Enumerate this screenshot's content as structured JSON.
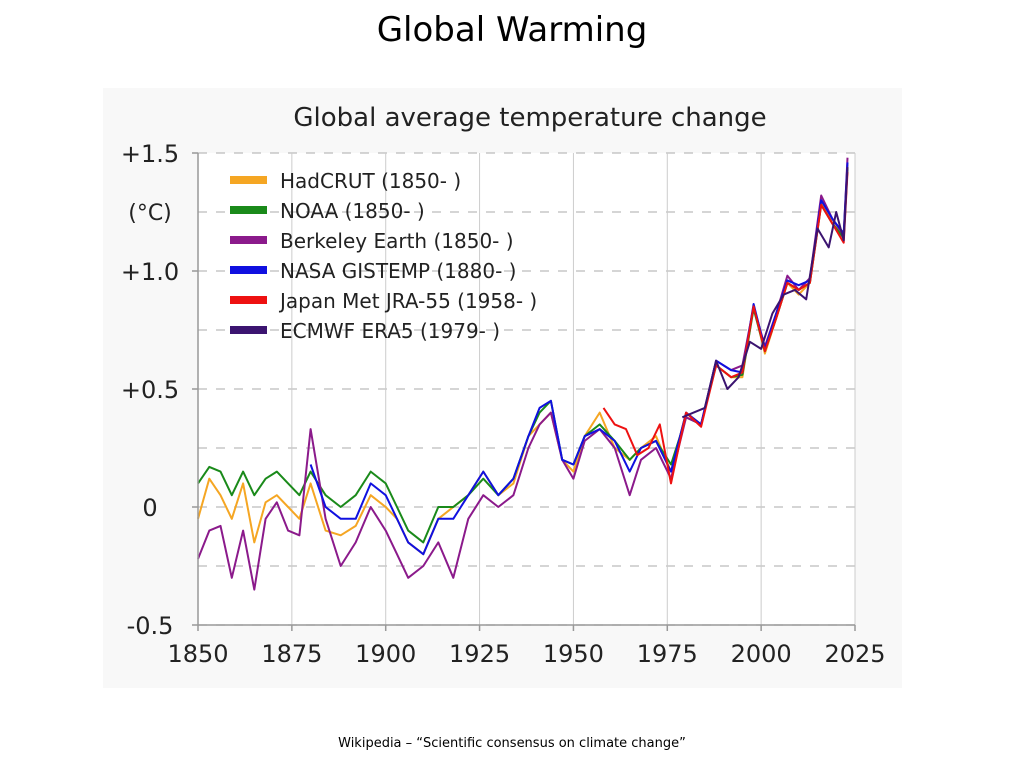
{
  "slide": {
    "title": "Global Warming",
    "caption": "Wikipedia – “Scientific consensus on climate change”"
  },
  "chart_data": {
    "type": "line",
    "title": "Global average temperature change",
    "ylabel": "(°C)",
    "xlim": [
      1850,
      2025
    ],
    "ylim": [
      -0.5,
      1.5
    ],
    "x_ticks": [
      "1850",
      "1875",
      "1900",
      "1925",
      "1950",
      "1975",
      "2000",
      "2025"
    ],
    "y_ticks": [
      {
        "value": 1.5,
        "label": "+1.5"
      },
      {
        "value": 1.0,
        "label": "+1.0"
      },
      {
        "value": 0.5,
        "label": "+0.5"
      },
      {
        "value": 0,
        "label": "0"
      },
      {
        "value": -0.5,
        "label": "-0.5"
      }
    ],
    "grid": "horizontal-dashed",
    "legend": "top-left",
    "series": [
      {
        "name": "HadCRUT (1850- )",
        "color": "#f5a623",
        "x": [
          1850,
          1853,
          1856,
          1859,
          1862,
          1865,
          1868,
          1871,
          1874,
          1877,
          1880,
          1884,
          1888,
          1892,
          1896,
          1900,
          1903,
          1906,
          1910,
          1914,
          1918,
          1922,
          1926,
          1930,
          1934,
          1938,
          1941,
          1944,
          1947,
          1950,
          1953,
          1957,
          1961,
          1965,
          1968,
          1972,
          1976,
          1980,
          1984,
          1988,
          1992,
          1995,
          1998,
          2001,
          2004,
          2007,
          2010,
          2013,
          2016,
          2019,
          2022,
          2023
        ],
        "y": [
          -0.05,
          0.12,
          0.05,
          -0.05,
          0.1,
          -0.15,
          0.02,
          0.05,
          0.0,
          -0.05,
          0.1,
          -0.1,
          -0.12,
          -0.08,
          0.05,
          0.0,
          -0.05,
          -0.15,
          -0.2,
          -0.05,
          0.0,
          0.05,
          0.15,
          0.05,
          0.1,
          0.3,
          0.35,
          0.4,
          0.2,
          0.15,
          0.3,
          0.4,
          0.25,
          0.2,
          0.25,
          0.3,
          0.15,
          0.4,
          0.35,
          0.6,
          0.55,
          0.55,
          0.85,
          0.65,
          0.8,
          0.95,
          0.9,
          0.95,
          1.3,
          1.2,
          1.15,
          1.45
        ]
      },
      {
        "name": "NOAA (1850- )",
        "color": "#1a8a1a",
        "x": [
          1850,
          1853,
          1856,
          1859,
          1862,
          1865,
          1868,
          1871,
          1874,
          1877,
          1880,
          1884,
          1888,
          1892,
          1896,
          1900,
          1903,
          1906,
          1910,
          1914,
          1918,
          1922,
          1926,
          1930,
          1934,
          1938,
          1941,
          1944,
          1947,
          1950,
          1953,
          1957,
          1961,
          1965,
          1968,
          1972,
          1976,
          1980,
          1984,
          1988,
          1992,
          1995,
          1998,
          2001,
          2004,
          2007,
          2010,
          2013,
          2016,
          2019,
          2022,
          2023
        ],
        "y": [
          0.1,
          0.17,
          0.15,
          0.05,
          0.15,
          0.05,
          0.12,
          0.15,
          0.1,
          0.05,
          0.15,
          0.05,
          0.0,
          0.05,
          0.15,
          0.1,
          0.0,
          -0.1,
          -0.15,
          0.0,
          0.0,
          0.05,
          0.12,
          0.05,
          0.12,
          0.3,
          0.4,
          0.45,
          0.2,
          0.18,
          0.3,
          0.35,
          0.28,
          0.2,
          0.25,
          0.28,
          0.18,
          0.38,
          0.35,
          0.6,
          0.55,
          0.56,
          0.84,
          0.66,
          0.8,
          0.95,
          0.92,
          0.95,
          1.28,
          1.2,
          1.14,
          1.44
        ]
      },
      {
        "name": "Berkeley Earth (1850- )",
        "color": "#8b1a8b",
        "x": [
          1850,
          1853,
          1856,
          1859,
          1862,
          1865,
          1868,
          1871,
          1874,
          1877,
          1880,
          1884,
          1888,
          1892,
          1896,
          1900,
          1903,
          1906,
          1910,
          1914,
          1918,
          1922,
          1926,
          1930,
          1934,
          1938,
          1941,
          1944,
          1947,
          1950,
          1953,
          1957,
          1961,
          1965,
          1968,
          1972,
          1976,
          1980,
          1984,
          1988,
          1992,
          1995,
          1998,
          2001,
          2004,
          2007,
          2010,
          2013,
          2016,
          2019,
          2022,
          2023
        ],
        "y": [
          -0.22,
          -0.1,
          -0.08,
          -0.3,
          -0.1,
          -0.35,
          -0.05,
          0.02,
          -0.1,
          -0.12,
          0.33,
          -0.05,
          -0.25,
          -0.15,
          0.0,
          -0.1,
          -0.2,
          -0.3,
          -0.25,
          -0.15,
          -0.3,
          -0.05,
          0.05,
          0.0,
          0.05,
          0.25,
          0.35,
          0.4,
          0.2,
          0.12,
          0.28,
          0.33,
          0.25,
          0.05,
          0.2,
          0.25,
          0.12,
          0.38,
          0.35,
          0.62,
          0.58,
          0.6,
          0.85,
          0.68,
          0.82,
          0.98,
          0.92,
          0.97,
          1.32,
          1.22,
          1.15,
          1.48
        ]
      },
      {
        "name": "NASA GISTEMP (1880- )",
        "color": "#1010e0",
        "x": [
          1880,
          1884,
          1888,
          1892,
          1896,
          1900,
          1903,
          1906,
          1910,
          1914,
          1918,
          1922,
          1926,
          1930,
          1934,
          1938,
          1941,
          1944,
          1947,
          1950,
          1953,
          1957,
          1961,
          1965,
          1968,
          1972,
          1976,
          1980,
          1984,
          1988,
          1992,
          1995,
          1998,
          2001,
          2004,
          2007,
          2010,
          2013,
          2016,
          2019,
          2022,
          2023
        ],
        "y": [
          0.18,
          0.0,
          -0.05,
          -0.05,
          0.1,
          0.05,
          -0.05,
          -0.15,
          -0.2,
          -0.05,
          -0.05,
          0.05,
          0.15,
          0.05,
          0.12,
          0.3,
          0.42,
          0.45,
          0.2,
          0.18,
          0.3,
          0.33,
          0.28,
          0.15,
          0.25,
          0.28,
          0.15,
          0.4,
          0.35,
          0.62,
          0.58,
          0.57,
          0.86,
          0.67,
          0.82,
          0.96,
          0.94,
          0.96,
          1.3,
          1.22,
          1.16,
          1.46
        ]
      },
      {
        "name": "Japan Met JRA-55 (1958- )",
        "color": "#ee1111",
        "x": [
          1958,
          1961,
          1964,
          1967,
          1970,
          1973,
          1976,
          1980,
          1984,
          1988,
          1992,
          1995,
          1998,
          2001,
          2004,
          2007,
          2010,
          2013,
          2016,
          2019,
          2022,
          2023
        ],
        "y": [
          0.42,
          0.35,
          0.33,
          0.22,
          0.25,
          0.35,
          0.1,
          0.4,
          0.34,
          0.6,
          0.55,
          0.57,
          0.85,
          0.66,
          0.8,
          0.95,
          0.92,
          0.95,
          1.28,
          1.2,
          1.12,
          1.42
        ]
      },
      {
        "name": "ECMWF ERA5 (1979- )",
        "color": "#3b1470",
        "x": [
          1979,
          1982,
          1985,
          1988,
          1991,
          1994,
          1997,
          2000,
          2003,
          2006,
          2009,
          2012,
          2015,
          2018,
          2020,
          2022,
          2023
        ],
        "y": [
          0.38,
          0.4,
          0.42,
          0.62,
          0.5,
          0.55,
          0.7,
          0.67,
          0.82,
          0.9,
          0.92,
          0.88,
          1.18,
          1.1,
          1.25,
          1.13,
          1.44
        ]
      }
    ]
  }
}
